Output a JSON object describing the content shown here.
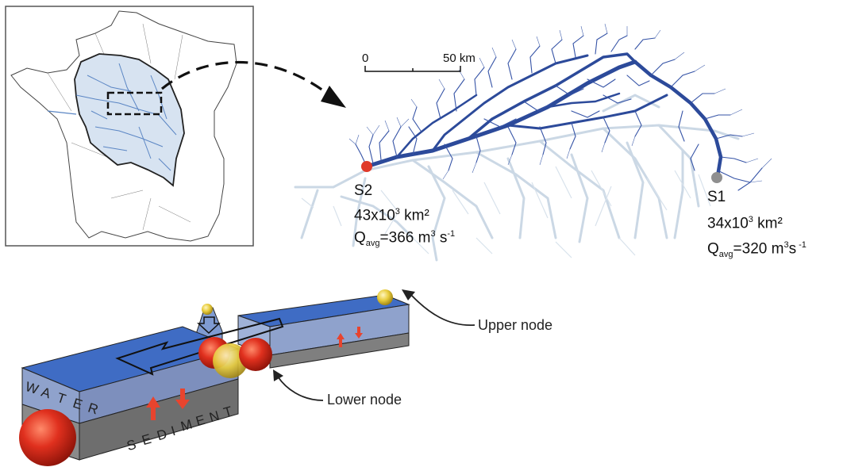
{
  "scale_bar": {
    "zero": "0",
    "fifty": "50",
    "unit": "km"
  },
  "site_s2": {
    "name": "S2",
    "area_value": "43x10",
    "area_exp": "3",
    "area_unit": " km²",
    "q_symbol": "Q",
    "q_sub": "avg",
    "q_eq": "=",
    "q_value": "366 m",
    "q_exp1": "3",
    "q_mid": " s",
    "q_exp2": "-1"
  },
  "site_s1": {
    "name": "S1",
    "area_value": "34x10",
    "area_exp": "3",
    "area_unit": " km²",
    "q_symbol": "Q",
    "q_sub": "avg",
    "q_eq": "=",
    "q_value": "320 m",
    "q_exp1": "3",
    "q_mid": "s",
    "q_exp2": " -1"
  },
  "diagram": {
    "upper_node_label": "Upper node",
    "lower_node_label": "Lower node",
    "water_letters": [
      "W",
      "A",
      "T",
      "E",
      "R"
    ],
    "sediment_letters": [
      "S",
      "E",
      "D",
      "I",
      "M",
      "E",
      "N",
      "T"
    ]
  },
  "colors": {
    "river_dark": "#2c4a9a",
    "river_light": "#c9d6e3",
    "inset_river": "#6f95c9",
    "site_s2": "#e03a2a",
    "site_s1": "#8f8f8f",
    "water_top": "#3f6cc4",
    "water_side": "#8fa2cc",
    "sediment_side": "#7f7f7f",
    "node_red": "#d9261c",
    "node_yellow": "#e6c83a",
    "arrow_red": "#e8442e"
  }
}
